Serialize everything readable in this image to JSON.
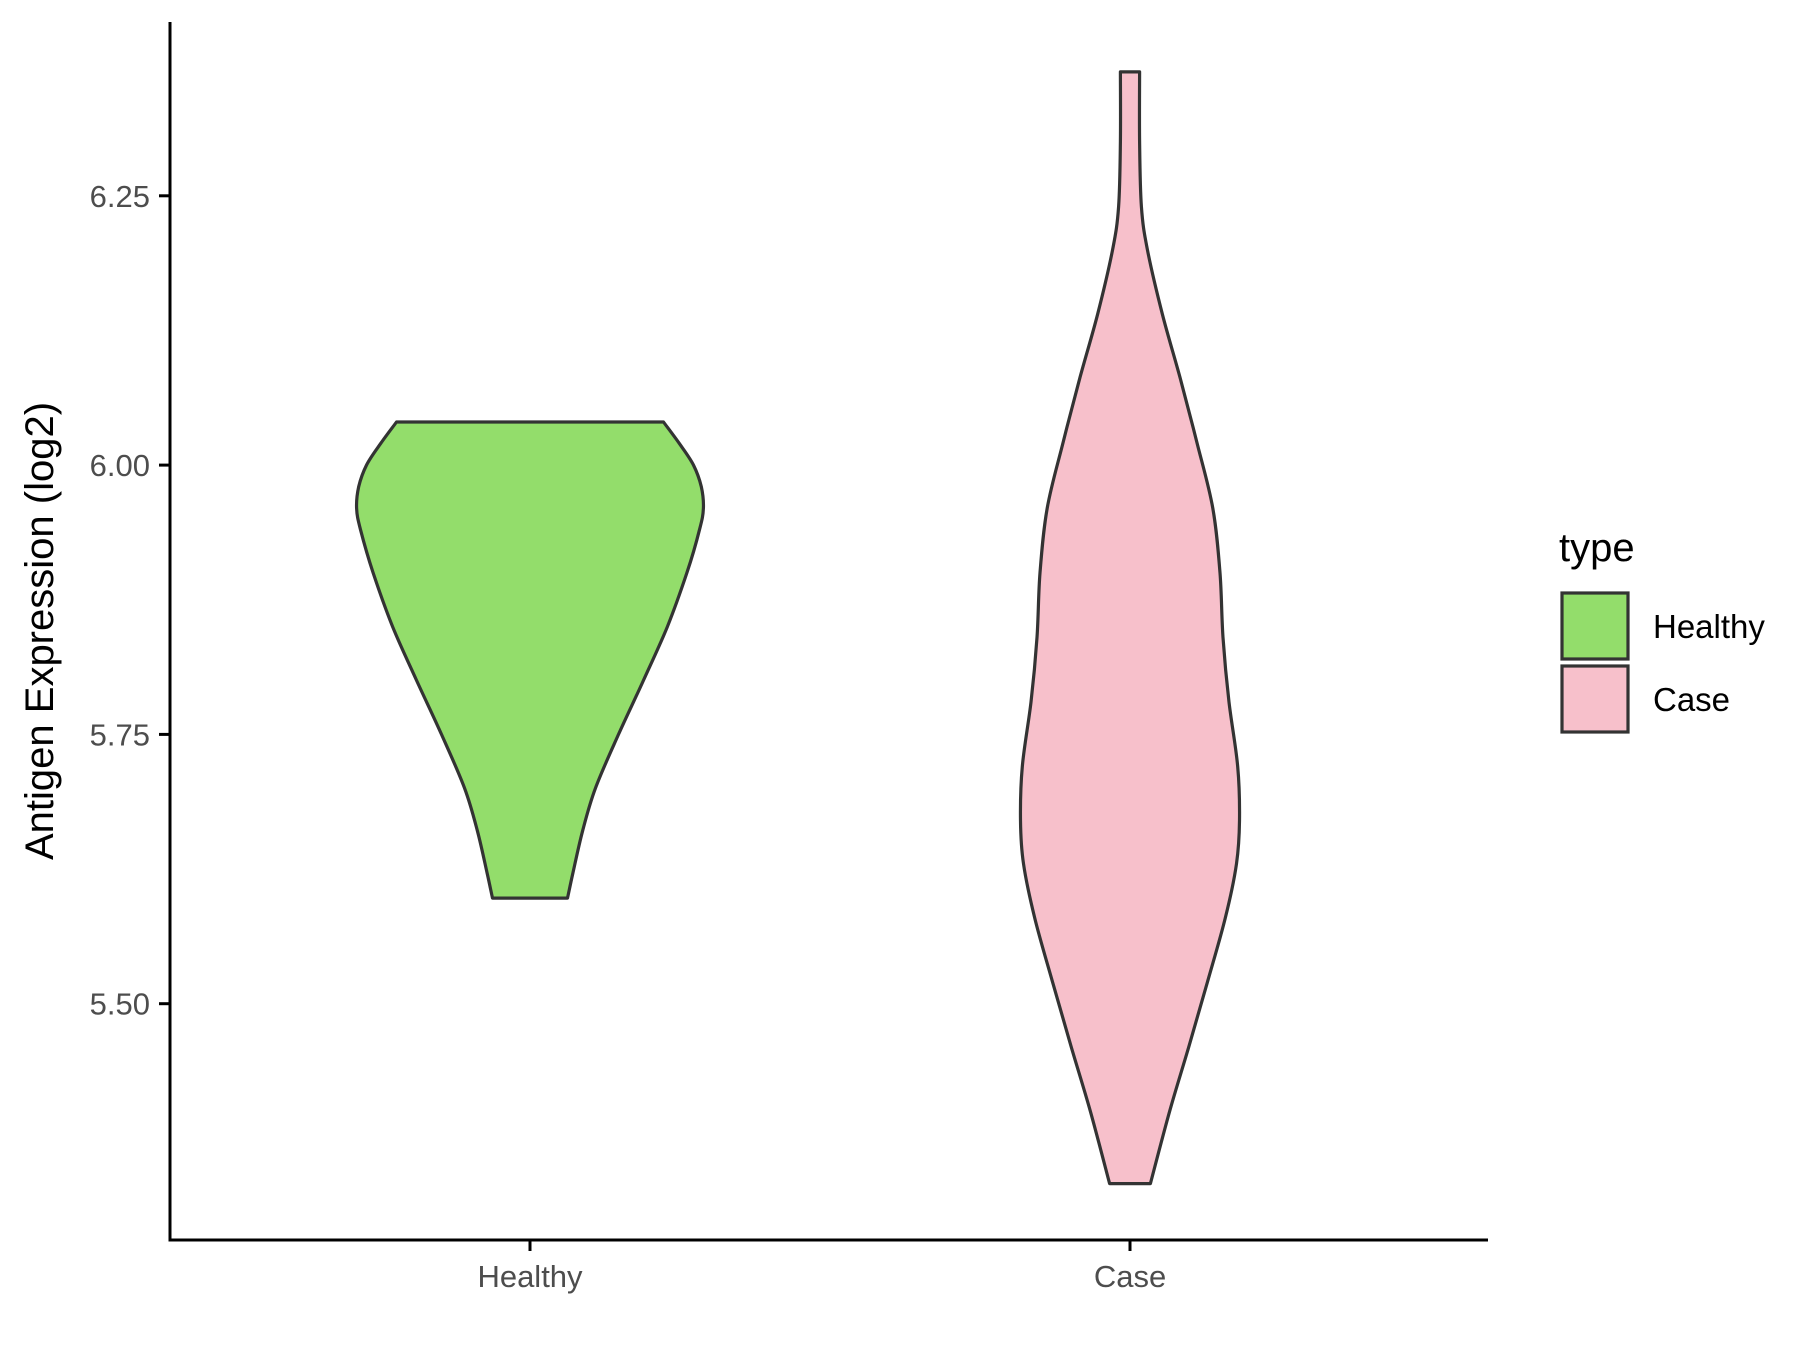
{
  "chart_data": {
    "type": "violin",
    "title": "",
    "xlabel": "",
    "ylabel": "Antigen Expression (log2)",
    "ylim": [
      5.3,
      6.42
    ],
    "yticks": [
      "5.50",
      "5.75",
      "6.00",
      "6.25"
    ],
    "categories": [
      "Healthy",
      "Case"
    ],
    "grid": false,
    "legend": {
      "title": "type",
      "position": "right",
      "items": [
        {
          "label": "Healthy",
          "color": "#93DD6B"
        },
        {
          "label": "Case",
          "color": "#F7C0CB"
        }
      ]
    },
    "series": [
      {
        "name": "Healthy",
        "color": "#93DD6B",
        "min": 5.598,
        "max": 6.04,
        "density": [
          [
            5.598,
            0.125
          ],
          [
            5.62,
            0.142
          ],
          [
            5.66,
            0.175
          ],
          [
            5.7,
            0.218
          ],
          [
            5.75,
            0.295
          ],
          [
            5.8,
            0.378
          ],
          [
            5.85,
            0.458
          ],
          [
            5.9,
            0.523
          ],
          [
            5.94,
            0.565
          ],
          [
            5.96,
            0.578
          ],
          [
            5.98,
            0.571
          ],
          [
            6.0,
            0.545
          ],
          [
            6.02,
            0.498
          ],
          [
            6.04,
            0.445
          ]
        ]
      },
      {
        "name": "Case",
        "color": "#F7C0CB",
        "min": 5.333,
        "max": 6.365,
        "density": [
          [
            5.333,
            0.068
          ],
          [
            5.4,
            0.132
          ],
          [
            5.46,
            0.196
          ],
          [
            5.52,
            0.258
          ],
          [
            5.58,
            0.318
          ],
          [
            5.63,
            0.355
          ],
          [
            5.67,
            0.365
          ],
          [
            5.72,
            0.359
          ],
          [
            5.78,
            0.33
          ],
          [
            5.84,
            0.31
          ],
          [
            5.9,
            0.3
          ],
          [
            5.96,
            0.276
          ],
          [
            6.02,
            0.224
          ],
          [
            6.08,
            0.168
          ],
          [
            6.14,
            0.108
          ],
          [
            6.2,
            0.058
          ],
          [
            6.24,
            0.038
          ],
          [
            6.3,
            0.032
          ],
          [
            6.365,
            0.032
          ]
        ]
      }
    ]
  }
}
